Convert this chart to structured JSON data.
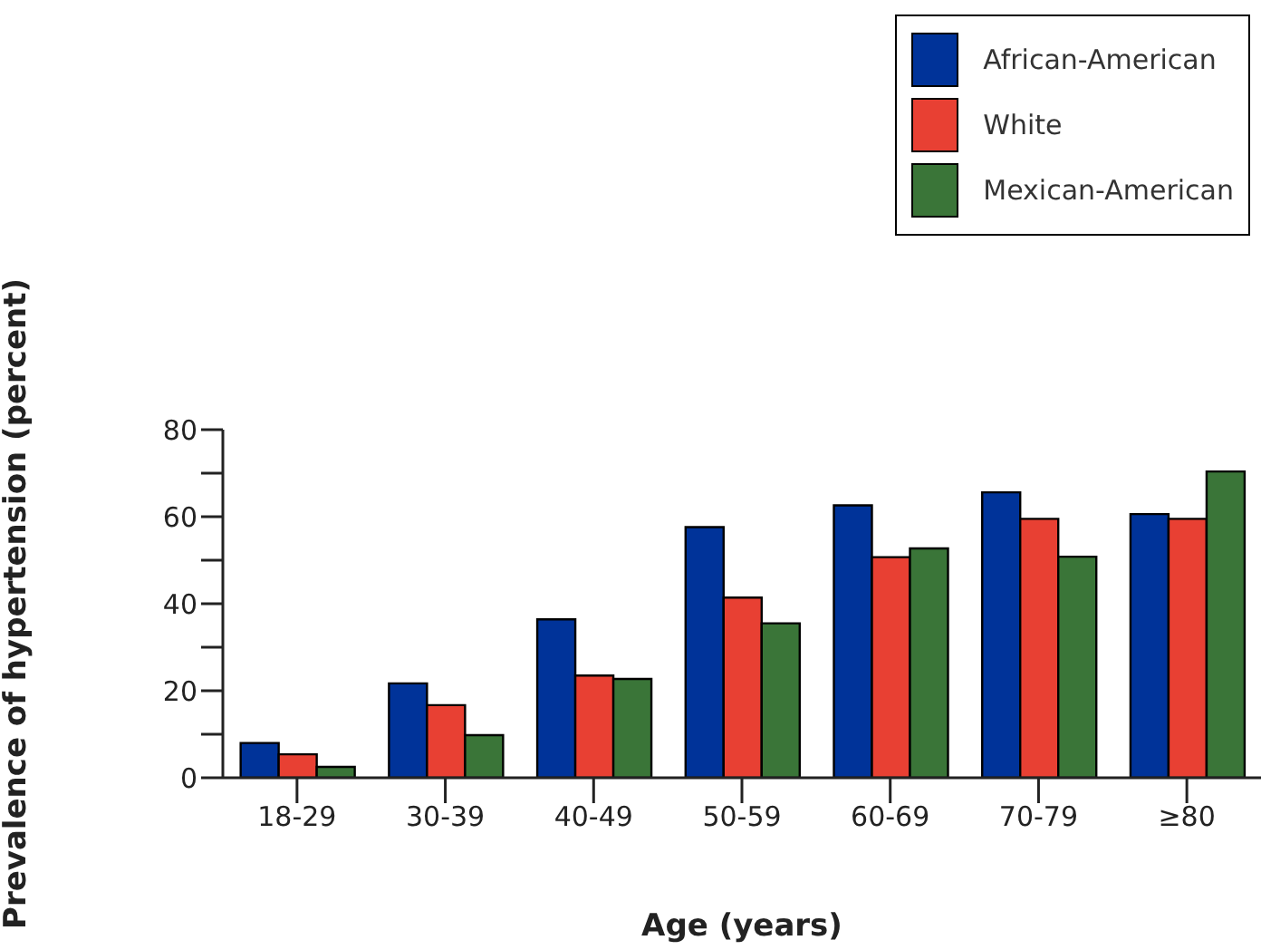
{
  "chart_data": {
    "type": "bar",
    "xlabel": "Age (years)",
    "ylabel": "Prevalence of hypertension (percent)",
    "categories": [
      "18-29",
      "30-39",
      "40-49",
      "50-59",
      "60-69",
      "70-79",
      "≥80"
    ],
    "series": [
      {
        "name": "African-American",
        "color": "#003399",
        "values": [
          8,
          21.7,
          36.4,
          57.6,
          62.6,
          65.6,
          60.6
        ]
      },
      {
        "name": "White",
        "color": "#e84033",
        "values": [
          5.4,
          16.7,
          23.5,
          41.4,
          50.7,
          59.5,
          59.5
        ]
      },
      {
        "name": "Mexican-American",
        "color": "#3a7538",
        "values": [
          2.5,
          9.8,
          22.7,
          35.5,
          52.7,
          50.8,
          70.4
        ]
      }
    ],
    "ylim": [
      0,
      80
    ],
    "yticks": [
      0,
      {
        "value": 10,
        "label": null
      },
      20,
      {
        "value": 30,
        "label": null
      },
      40,
      {
        "value": 50,
        "label": null
      },
      60,
      {
        "value": 70,
        "label": null
      },
      80
    ],
    "grid": false,
    "legend": "top right"
  }
}
